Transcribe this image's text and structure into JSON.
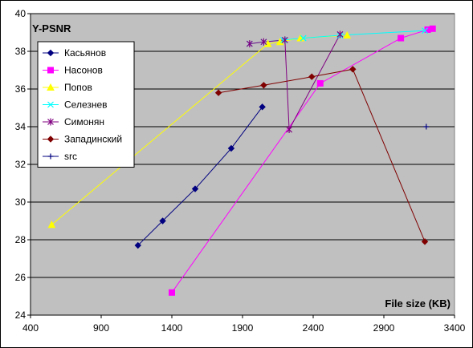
{
  "chart_data": {
    "type": "line",
    "title": "Y-PSNR",
    "xlabel": "File size (KB)",
    "ylabel": "",
    "xlim": [
      400,
      3400
    ],
    "ylim": [
      24,
      40
    ],
    "xticks": [
      "400",
      "900",
      "1400",
      "1900",
      "2400",
      "2900",
      "3400"
    ],
    "yticks": [
      "24",
      "26",
      "28",
      "30",
      "32",
      "34",
      "36",
      "38",
      "40"
    ],
    "grid": "horizontal",
    "plot_background": "#c0c0c0",
    "legend_position": "top-left",
    "series": [
      {
        "name": "Касьянов",
        "color": "#000080",
        "marker": "diamond",
        "x": [
          1160,
          1335,
          1565,
          1820,
          2040
        ],
        "y": [
          27.7,
          29.0,
          30.7,
          32.85,
          35.05
        ]
      },
      {
        "name": "Насонов",
        "color": "#ff00ff",
        "marker": "square",
        "x": [
          1400,
          2450,
          3020,
          3210,
          3245
        ],
        "y": [
          25.2,
          36.3,
          38.7,
          39.15,
          39.2
        ]
      },
      {
        "name": "Попов",
        "color": "#ffff00",
        "marker": "triangle",
        "x": [
          550,
          2080,
          2165,
          2310,
          2640
        ],
        "y": [
          28.8,
          38.4,
          38.5,
          38.7,
          38.85
        ]
      },
      {
        "name": "Селезнев",
        "color": "#00ffff",
        "marker": "x",
        "x": [
          1950,
          2050,
          2190,
          2330,
          2590,
          3190
        ],
        "y": [
          38.4,
          38.5,
          38.6,
          38.7,
          38.85,
          39.1
        ]
      },
      {
        "name": "Симонян",
        "color": "#800080",
        "marker": "star",
        "x": [
          1950,
          2050,
          2200,
          2230,
          2590
        ],
        "y": [
          38.4,
          38.5,
          38.6,
          33.85,
          38.9
        ]
      },
      {
        "name": "Западинский",
        "color": "#800000",
        "marker": "diamond",
        "x": [
          1730,
          2050,
          2390,
          2680,
          3190
        ],
        "y": [
          35.8,
          36.2,
          36.65,
          37.05,
          27.9
        ]
      },
      {
        "name": "src",
        "color": "#000080",
        "marker": "plus",
        "x": [
          3200
        ],
        "y": [
          34.0
        ]
      }
    ]
  }
}
